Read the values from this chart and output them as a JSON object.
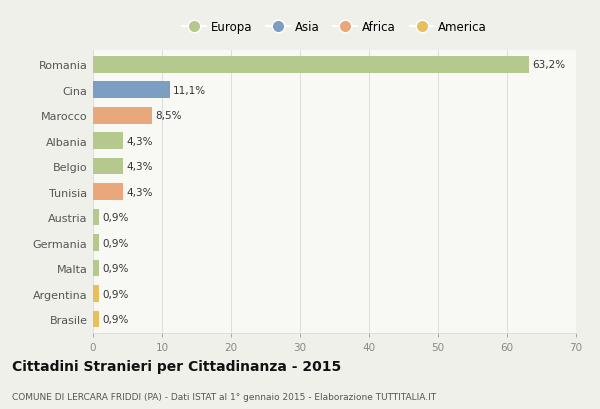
{
  "countries": [
    "Romania",
    "Cina",
    "Marocco",
    "Albania",
    "Belgio",
    "Tunisia",
    "Austria",
    "Germania",
    "Malta",
    "Argentina",
    "Brasile"
  ],
  "values": [
    63.2,
    11.1,
    8.5,
    4.3,
    4.3,
    4.3,
    0.9,
    0.9,
    0.9,
    0.9,
    0.9
  ],
  "labels": [
    "63,2%",
    "11,1%",
    "8,5%",
    "4,3%",
    "4,3%",
    "4,3%",
    "0,9%",
    "0,9%",
    "0,9%",
    "0,9%",
    "0,9%"
  ],
  "colors": [
    "#b5c98e",
    "#7a9fc2",
    "#e8a87c",
    "#b5c98e",
    "#b5c98e",
    "#e8a87c",
    "#b5c98e",
    "#b5c98e",
    "#b5c98e",
    "#e8bf5a",
    "#e8bf5a"
  ],
  "legend_labels": [
    "Europa",
    "Asia",
    "Africa",
    "America"
  ],
  "legend_colors": [
    "#b5c98e",
    "#7a9fc2",
    "#e8a87c",
    "#e8bf5a"
  ],
  "title": "Cittadini Stranieri per Cittadinanza - 2015",
  "subtitle": "COMUNE DI LERCARA FRIDDI (PA) - Dati ISTAT al 1° gennaio 2015 - Elaborazione TUTTITALIA.IT",
  "xlim": [
    0,
    70
  ],
  "xticks": [
    0,
    10,
    20,
    30,
    40,
    50,
    60,
    70
  ],
  "bg_color": "#f0f0eb",
  "bar_bg_color": "#f8f8f5",
  "grid_color": "#dddddd",
  "bar_height": 0.65
}
